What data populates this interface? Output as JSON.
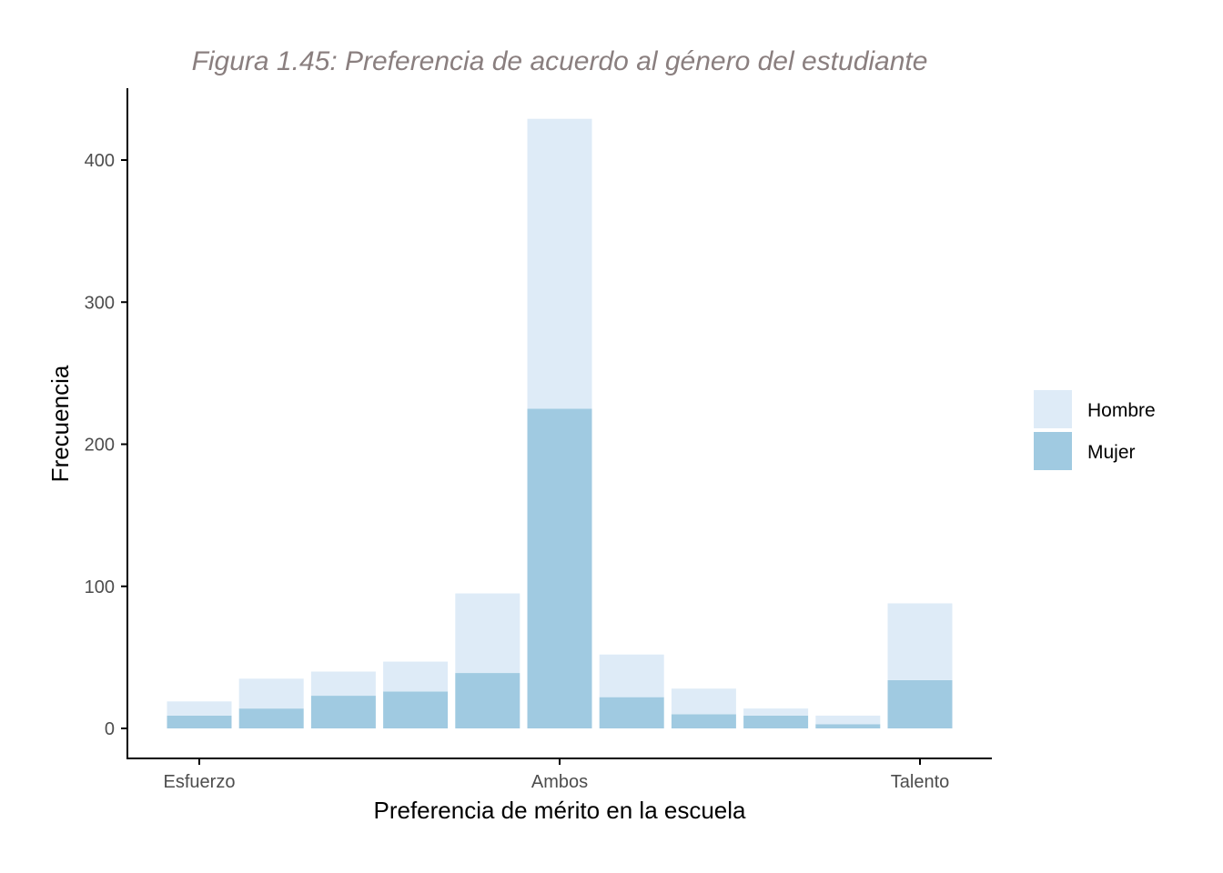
{
  "chart_data": {
    "type": "bar",
    "stacked": true,
    "title": "Figura 1.45: Preferencia de acuerdo al género del estudiante",
    "xlabel": "Preferencia de mérito en la escuela",
    "ylabel": "Frecuencia",
    "x_tick_labels": [
      {
        "position": 1,
        "label": "Esfuerzo"
      },
      {
        "position": 6,
        "label": "Ambos"
      },
      {
        "position": 11,
        "label": "Talento"
      }
    ],
    "positions": [
      1,
      2,
      3,
      4,
      5,
      6,
      7,
      8,
      9,
      10,
      11
    ],
    "y_ticks": [
      0,
      100,
      200,
      300,
      400
    ],
    "ylim": [
      -20,
      450
    ],
    "grid": false,
    "legend_position": "right",
    "series": [
      {
        "name": "Mujer",
        "color": "#a0cae1",
        "values": [
          9,
          14,
          23,
          26,
          39,
          225,
          22,
          10,
          9,
          3,
          34
        ]
      },
      {
        "name": "Hombre",
        "color": "#deebf7",
        "values": [
          10,
          21,
          17,
          21,
          56,
          204,
          30,
          18,
          5,
          6,
          54
        ]
      }
    ],
    "legend_order": [
      "Hombre",
      "Mujer"
    ]
  }
}
